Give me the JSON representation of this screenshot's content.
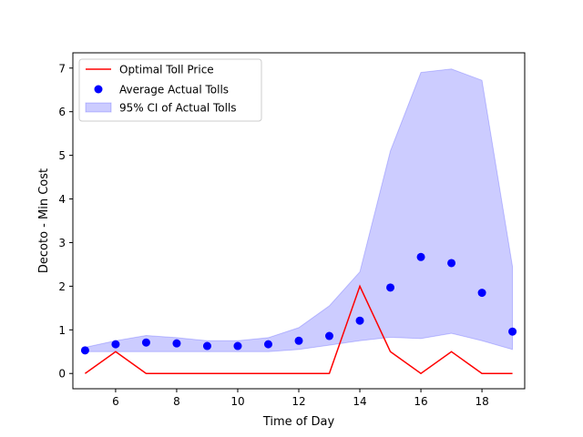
{
  "chart_data": {
    "type": "line",
    "xlabel": "Time of Day",
    "ylabel": "Decoto - Min Cost",
    "xlim": [
      4.6,
      19.4
    ],
    "ylim": [
      -0.35,
      7.35
    ],
    "x_ticks": [
      6,
      8,
      10,
      12,
      14,
      16,
      18
    ],
    "y_ticks": [
      0,
      1,
      2,
      3,
      4,
      5,
      6,
      7
    ],
    "grid": false,
    "legend_position": "top-left",
    "x": [
      5,
      6,
      7,
      8,
      9,
      10,
      11,
      12,
      13,
      14,
      15,
      16,
      17,
      18,
      19
    ],
    "series": [
      {
        "name": "Optimal Toll Price",
        "kind": "line",
        "color": "#ff0000",
        "values": [
          0,
          0.5,
          0,
          0,
          0,
          0,
          0,
          0,
          0,
          2.0,
          0.5,
          0,
          0.5,
          0,
          0
        ]
      },
      {
        "name": "Average Actual Tolls",
        "kind": "scatter",
        "color": "#0000ff",
        "values": [
          0.53,
          0.67,
          0.71,
          0.69,
          0.63,
          0.63,
          0.67,
          0.75,
          0.86,
          1.21,
          1.97,
          2.67,
          2.53,
          1.85,
          0.96
        ]
      },
      {
        "name": "95% CI of Actual Tolls",
        "kind": "band",
        "color": "#0000ff",
        "lower": [
          0.5,
          0.5,
          0.5,
          0.5,
          0.5,
          0.5,
          0.5,
          0.55,
          0.65,
          0.75,
          0.83,
          0.8,
          0.92,
          0.75,
          0.55
        ],
        "upper": [
          0.6,
          0.75,
          0.87,
          0.82,
          0.75,
          0.75,
          0.82,
          1.05,
          1.55,
          2.33,
          5.1,
          6.9,
          6.98,
          6.72,
          2.45
        ]
      }
    ]
  }
}
